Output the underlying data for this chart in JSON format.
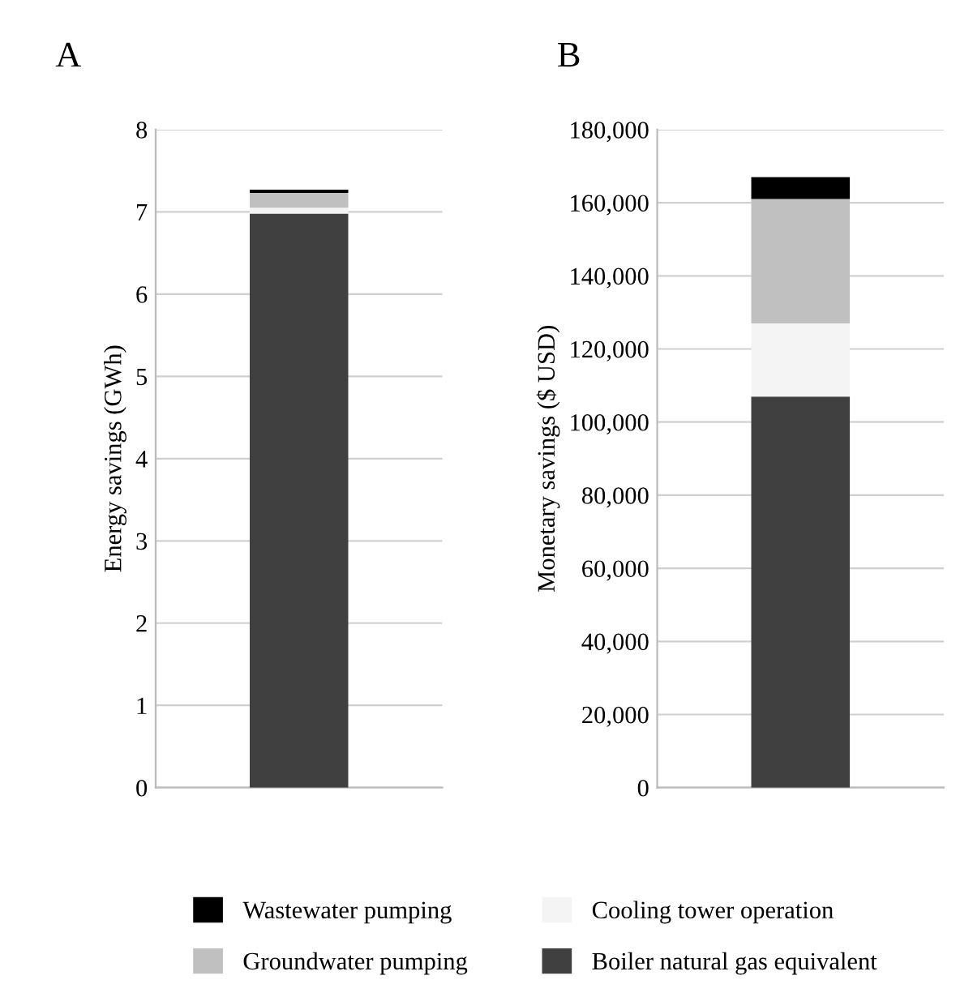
{
  "chart_data": [
    {
      "type": "bar",
      "title": "A",
      "ylabel": "Energy savings (GWh)",
      "stacked": true,
      "categories": [
        null
      ],
      "ylim": [
        0,
        8
      ],
      "yticks": [
        0,
        1,
        2,
        3,
        4,
        5,
        6,
        7,
        8
      ],
      "grid": "y",
      "legend": "bottom",
      "series": [
        {
          "name": "Boiler natural gas equivalent",
          "color": "#404040",
          "values": [
            6.98
          ]
        },
        {
          "name": "Cooling tower operation",
          "color": "#f4f4f4",
          "values": [
            0.07
          ]
        },
        {
          "name": "Groundwater pumping",
          "color": "#c0c0c0",
          "values": [
            0.18
          ]
        },
        {
          "name": "Wastewater pumping",
          "color": "#000000",
          "values": [
            0.04
          ]
        }
      ]
    },
    {
      "type": "bar",
      "title": "B",
      "ylabel": "Monetary savings ($ USD)",
      "stacked": true,
      "categories": [
        null
      ],
      "ylim": [
        0,
        180000
      ],
      "yticks": [
        {
          "value": 0,
          "label": "0"
        },
        {
          "value": 20000,
          "label": "20,000"
        },
        {
          "value": 40000,
          "label": "40,000"
        },
        {
          "value": 60000,
          "label": "60,000"
        },
        {
          "value": 80000,
          "label": "80,000"
        },
        {
          "value": 100000,
          "label": "100,000"
        },
        {
          "value": 120000,
          "label": "120,000"
        },
        {
          "value": 140000,
          "label": "140,000"
        },
        {
          "value": 160000,
          "label": "160,000"
        },
        {
          "value": 180000,
          "label": "180,000"
        }
      ],
      "grid": "y",
      "series": [
        {
          "color": "#404040",
          "values": [
            107000
          ]
        },
        {
          "color": "#f4f4f4",
          "values": [
            20000
          ]
        },
        {
          "color": "#c0c0c0",
          "values": [
            34000
          ]
        },
        {
          "color": "#000000",
          "values": [
            6000
          ]
        }
      ]
    }
  ]
}
